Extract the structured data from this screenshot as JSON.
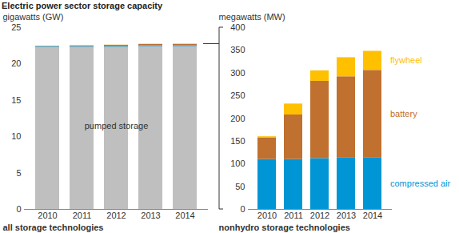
{
  "chart_data": [
    {
      "type": "bar",
      "stacked": true,
      "title": "Electric power sector storage capacity",
      "ylabel": "gigawatts (GW)",
      "xlabel": "all storage technologies",
      "categories": [
        "2010",
        "2011",
        "2012",
        "2013",
        "2014"
      ],
      "series": [
        {
          "name": "pumped storage",
          "color": "#bfbfbf",
          "values": [
            22.3,
            22.3,
            22.3,
            22.4,
            22.4
          ]
        },
        {
          "name": "compressed air",
          "color": "#0096d6",
          "values": [
            0.11,
            0.11,
            0.112,
            0.114,
            0.114
          ]
        },
        {
          "name": "battery",
          "color": "#c0702f",
          "values": [
            0.047,
            0.098,
            0.17,
            0.178,
            0.192
          ]
        },
        {
          "name": "flywheel",
          "color": "#ffc000",
          "values": [
            0.003,
            0.024,
            0.023,
            0.042,
            0.042
          ]
        }
      ],
      "annotations": [
        {
          "text": "pumped storage",
          "x": "2012",
          "y": 11.5
        }
      ],
      "ylim": [
        0,
        25
      ],
      "yticks": [
        0,
        5,
        10,
        15,
        20,
        25
      ]
    },
    {
      "type": "bar",
      "stacked": true,
      "ylabel": "megawatts (MW)",
      "xlabel": "nonhydro storage technologies",
      "categories": [
        "2010",
        "2011",
        "2012",
        "2013",
        "2014"
      ],
      "series": [
        {
          "name": "compressed air",
          "color": "#0096d6",
          "values": [
            110,
            110,
            112,
            114,
            114
          ]
        },
        {
          "name": "battery",
          "color": "#c0702f",
          "values": [
            47,
            98,
            170,
            178,
            192
          ]
        },
        {
          "name": "flywheel",
          "color": "#ffc000",
          "values": [
            3,
            24,
            23,
            42,
            42
          ]
        }
      ],
      "legend": "right",
      "ylim": [
        0,
        400
      ],
      "yticks": [
        0,
        50,
        100,
        150,
        200,
        250,
        300,
        350,
        400
      ]
    }
  ]
}
